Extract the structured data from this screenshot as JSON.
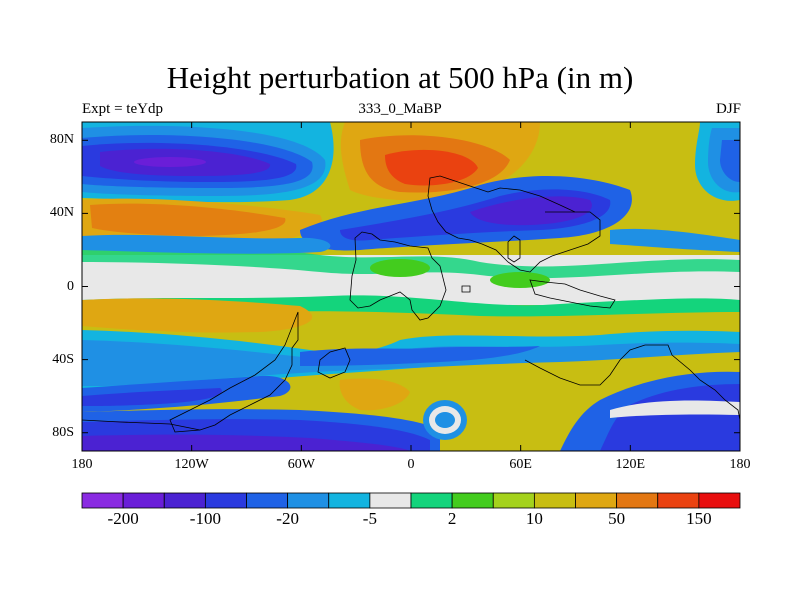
{
  "title": "Height perturbation at 500 hPa (in m)",
  "subtitle_left": "Expt = teYdp",
  "subtitle_center": "333_0_MaBP",
  "subtitle_right": "DJF",
  "map": {
    "lon_range": [
      -180,
      180
    ],
    "lat_range": [
      -90,
      90
    ],
    "y_ticks": [
      {
        "value": 80,
        "label": "80N"
      },
      {
        "value": 40,
        "label": "40N"
      },
      {
        "value": 0,
        "label": "0"
      },
      {
        "value": -40,
        "label": "40S"
      },
      {
        "value": -80,
        "label": "80S"
      }
    ],
    "x_ticks": [
      {
        "value": -180,
        "label": "180"
      },
      {
        "value": -120,
        "label": "120W"
      },
      {
        "value": -60,
        "label": "60W"
      },
      {
        "value": 0,
        "label": "0"
      },
      {
        "value": 60,
        "label": "60E"
      },
      {
        "value": 120,
        "label": "120E"
      },
      {
        "value": 180,
        "label": "180"
      }
    ]
  },
  "colorbar": {
    "colors": [
      "#8a2be2",
      "#6a1ed8",
      "#4b22d2",
      "#2a3adf",
      "#1f62e6",
      "#1f90e4",
      "#13b4e0",
      "#e8e8e8",
      "#14d47c",
      "#43cc1e",
      "#a4d21c",
      "#c8be12",
      "#dfa712",
      "#e37712",
      "#ea4210",
      "#e80e0e"
    ],
    "labels": [
      {
        "boundary": 1,
        "text": "-200"
      },
      {
        "boundary": 3,
        "text": "-100"
      },
      {
        "boundary": 5,
        "text": "-20"
      },
      {
        "boundary": 7,
        "text": "-5"
      },
      {
        "boundary": 9,
        "text": "2"
      },
      {
        "boundary": 11,
        "text": "10"
      },
      {
        "boundary": 13,
        "text": "50"
      },
      {
        "boundary": 15,
        "text": "150"
      }
    ]
  }
}
